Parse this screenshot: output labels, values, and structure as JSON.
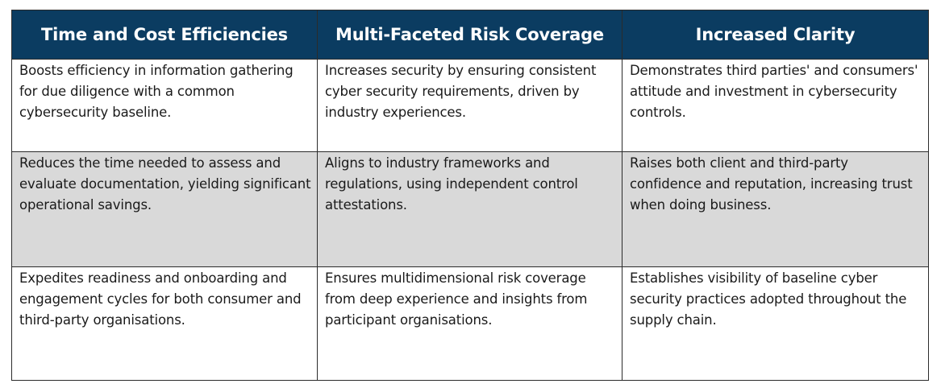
{
  "table": {
    "headers": [
      "Time and Cost Efficiencies",
      "Multi-Faceted Risk Coverage",
      "Increased Clarity"
    ],
    "rows": [
      [
        "Boosts efficiency in information gathering for due diligence with a common cybersecurity baseline.",
        "Increases security by ensuring consistent cyber security requirements, driven by industry experiences.",
        "Demonstrates third parties' and consumers' attitude and investment in cybersecurity controls."
      ],
      [
        "Reduces the time needed to assess and evaluate documentation, yielding significant operational savings.",
        "Aligns to industry frameworks and regulations, using independent control attestations.",
        "Raises both client and third-party confidence and reputation, increasing trust when doing business."
      ],
      [
        "Expedites readiness and onboarding and engagement cycles for both consumer and third-party organisations.",
        "Ensures multidimensional risk coverage from deep experience and insights from participant organisations.",
        "Establishes visibility of baseline cyber security practices adopted throughout the supply chain."
      ]
    ]
  },
  "colors": {
    "header_background": "#0b3c61",
    "header_text": "#ffffff",
    "shaded_row_background": "#d9d9d9",
    "border": "#2b2b2b"
  }
}
